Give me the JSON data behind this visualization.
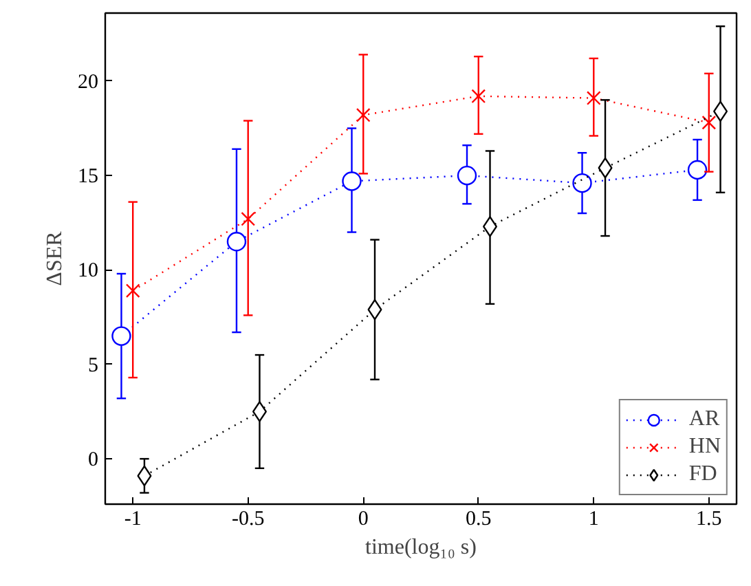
{
  "chart_data": {
    "type": "line",
    "xlabel": "time(log₁₀ s)",
    "ylabel": "ΔSER",
    "xlim": [
      -1.12,
      1.62
    ],
    "ylim": [
      -2.4,
      23.6
    ],
    "xticks": [
      -1,
      -0.5,
      0,
      0.5,
      1,
      1.5
    ],
    "yticks": [
      0,
      5,
      10,
      15,
      20
    ],
    "grid": false,
    "legend": "bottom right",
    "line_style": "dotted",
    "series": [
      {
        "name": "AR",
        "color": "#0000ff",
        "marker": "circle",
        "x": [
          -1.05,
          -0.55,
          -0.05,
          0.45,
          0.95,
          1.45
        ],
        "values": [
          6.5,
          11.5,
          14.7,
          15.0,
          14.6,
          15.3
        ],
        "errors": [
          [
            3.2,
            9.8
          ],
          [
            6.7,
            16.4
          ],
          [
            12.0,
            17.5
          ],
          [
            13.5,
            16.6
          ],
          [
            13.0,
            16.2
          ],
          [
            13.7,
            16.9
          ]
        ]
      },
      {
        "name": "HN",
        "color": "#ff0000",
        "marker": "cross",
        "x": [
          -1.0,
          -0.5,
          0.0,
          0.5,
          1.0,
          1.5
        ],
        "values": [
          8.9,
          12.7,
          18.2,
          19.2,
          19.1,
          17.8
        ],
        "errors": [
          [
            4.3,
            13.6
          ],
          [
            7.6,
            17.9
          ],
          [
            15.1,
            21.4
          ],
          [
            17.2,
            21.3
          ],
          [
            17.1,
            21.2
          ],
          [
            15.2,
            20.4
          ]
        ]
      },
      {
        "name": "FD",
        "color": "#000000",
        "marker": "diamond",
        "x": [
          -0.95,
          -0.45,
          0.05,
          0.55,
          1.05,
          1.55
        ],
        "values": [
          -0.9,
          2.5,
          7.9,
          12.3,
          15.4,
          18.4
        ],
        "errors": [
          [
            -1.8,
            0.0
          ],
          [
            -0.5,
            5.5
          ],
          [
            4.2,
            11.6
          ],
          [
            8.2,
            16.3
          ],
          [
            11.8,
            19.0
          ],
          [
            14.1,
            22.9
          ]
        ]
      }
    ]
  }
}
